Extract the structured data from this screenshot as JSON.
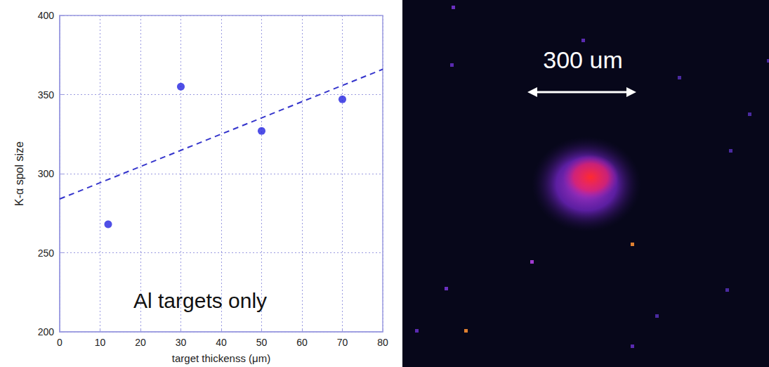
{
  "chart_data": {
    "type": "scatter",
    "x_label": "target thickenss (μm)",
    "y_label": "K-α spol size",
    "annotation": "Al targets only",
    "xlim": [
      0,
      80
    ],
    "xticks": [
      0,
      10,
      20,
      30,
      40,
      50,
      60,
      70,
      80
    ],
    "ylim": [
      200,
      400
    ],
    "yticks": [
      200,
      250,
      300,
      350,
      400
    ],
    "grid": true,
    "series": [
      {
        "type": "scatter",
        "marker": "circle",
        "color": "#2323e0",
        "x": [
          12,
          30,
          50,
          70
        ],
        "values": [
          268,
          355,
          327,
          347
        ]
      },
      {
        "type": "line",
        "line_style": "dashed",
        "color": "#3535cc",
        "x": [
          0,
          80
        ],
        "values": [
          284,
          366
        ]
      }
    ]
  },
  "image": {
    "scale_bar_label": "300 um"
  }
}
